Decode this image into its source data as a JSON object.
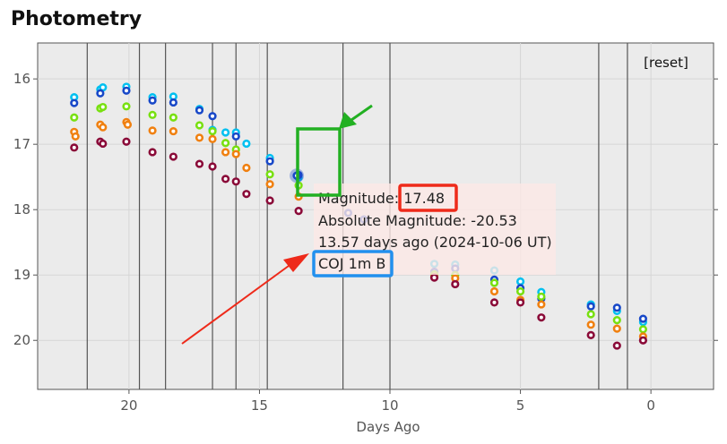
{
  "page": {
    "title": "Photometry"
  },
  "chart_data": {
    "type": "scatter",
    "title": "",
    "xlabel": "Days Ago",
    "ylabel": "",
    "xlim": [
      23.5,
      -2.4
    ],
    "ylim": [
      20.75,
      15.45
    ],
    "x_ticks": [
      20,
      15,
      10,
      5,
      0
    ],
    "y_ticks": [
      16,
      17,
      18,
      19,
      20
    ],
    "grid": true,
    "reset_label": "[reset]",
    "vlines": [
      21.6,
      19.6,
      18.6,
      16.8,
      15.9,
      14.7,
      11.8,
      10.0,
      2.0,
      0.9
    ],
    "series": [
      {
        "color": "#00c0f0",
        "points": [
          [
            22.1,
            16.28
          ],
          [
            21.1,
            16.16
          ],
          [
            21.0,
            16.13
          ],
          [
            20.1,
            16.12
          ],
          [
            19.1,
            16.28
          ],
          [
            18.3,
            16.27
          ],
          [
            17.3,
            16.46
          ],
          [
            16.8,
            16.78
          ],
          [
            16.3,
            16.82
          ],
          [
            15.9,
            16.82
          ],
          [
            15.5,
            16.99
          ],
          [
            14.6,
            17.21
          ],
          [
            13.5,
            17.51
          ],
          [
            8.3,
            18.83
          ],
          [
            7.5,
            18.84
          ],
          [
            6.0,
            18.93
          ],
          [
            5.0,
            19.1
          ],
          [
            4.2,
            19.26
          ],
          [
            2.3,
            19.45
          ],
          [
            1.3,
            19.55
          ],
          [
            0.3,
            19.72
          ]
        ]
      },
      {
        "color": "#1848c8",
        "points": [
          [
            22.1,
            16.37
          ],
          [
            21.1,
            16.22
          ],
          [
            20.1,
            16.18
          ],
          [
            19.1,
            16.33
          ],
          [
            18.3,
            16.36
          ],
          [
            17.3,
            16.48
          ],
          [
            16.8,
            16.57
          ],
          [
            15.9,
            16.88
          ],
          [
            14.6,
            17.26
          ],
          [
            13.5,
            17.47
          ],
          [
            11.6,
            18.05
          ],
          [
            11.0,
            18.15
          ],
          [
            8.3,
            18.95
          ],
          [
            7.5,
            18.9
          ],
          [
            6.0,
            19.07
          ],
          [
            5.0,
            19.2
          ],
          [
            4.2,
            19.36
          ],
          [
            2.3,
            19.48
          ],
          [
            1.3,
            19.5
          ],
          [
            0.3,
            19.67
          ]
        ]
      },
      {
        "color": "#78e010",
        "points": [
          [
            22.1,
            16.59
          ],
          [
            21.1,
            16.45
          ],
          [
            21.0,
            16.43
          ],
          [
            20.1,
            16.42
          ],
          [
            19.1,
            16.55
          ],
          [
            18.3,
            16.59
          ],
          [
            17.3,
            16.71
          ],
          [
            16.8,
            16.8
          ],
          [
            16.3,
            16.98
          ],
          [
            15.9,
            17.08
          ],
          [
            14.6,
            17.46
          ],
          [
            13.5,
            17.63
          ],
          [
            8.3,
            18.99
          ],
          [
            7.5,
            19.0
          ],
          [
            6.0,
            19.12
          ],
          [
            5.0,
            19.25
          ],
          [
            4.2,
            19.33
          ],
          [
            2.3,
            19.6
          ],
          [
            1.3,
            19.69
          ],
          [
            0.3,
            19.83
          ]
        ]
      },
      {
        "color": "#f08010",
        "points": [
          [
            22.1,
            16.81
          ],
          [
            22.05,
            16.88
          ],
          [
            21.1,
            16.7
          ],
          [
            21.0,
            16.74
          ],
          [
            20.1,
            16.66
          ],
          [
            20.05,
            16.7
          ],
          [
            19.1,
            16.79
          ],
          [
            18.3,
            16.8
          ],
          [
            17.3,
            16.9
          ],
          [
            16.8,
            16.92
          ],
          [
            16.3,
            17.12
          ],
          [
            15.9,
            17.15
          ],
          [
            15.5,
            17.36
          ],
          [
            14.6,
            17.61
          ],
          [
            13.5,
            17.8
          ],
          [
            8.3,
            19.03
          ],
          [
            7.5,
            19.05
          ],
          [
            6.0,
            19.25
          ],
          [
            5.0,
            19.38
          ],
          [
            4.2,
            19.45
          ],
          [
            2.3,
            19.76
          ],
          [
            1.3,
            19.82
          ],
          [
            0.3,
            19.94
          ]
        ]
      },
      {
        "color": "#8a0a38",
        "points": [
          [
            22.1,
            17.05
          ],
          [
            21.1,
            16.96
          ],
          [
            21.0,
            16.99
          ],
          [
            20.1,
            16.96
          ],
          [
            19.1,
            17.12
          ],
          [
            18.3,
            17.19
          ],
          [
            17.3,
            17.3
          ],
          [
            16.8,
            17.34
          ],
          [
            16.3,
            17.53
          ],
          [
            15.9,
            17.57
          ],
          [
            15.5,
            17.76
          ],
          [
            14.6,
            17.86
          ],
          [
            13.5,
            18.02
          ],
          [
            8.3,
            19.04
          ],
          [
            7.5,
            19.14
          ],
          [
            6.0,
            19.42
          ],
          [
            5.0,
            19.42
          ],
          [
            4.2,
            19.65
          ],
          [
            2.3,
            19.92
          ],
          [
            1.3,
            20.08
          ],
          [
            0.3,
            20.0
          ]
        ]
      }
    ],
    "highlight_point": {
      "x": 13.57,
      "y": 17.48,
      "color": "#1848c8"
    },
    "tooltip": {
      "magnitude": "Magnitude: 17.48",
      "absolute_magnitude": "Absolute Magnitude: -20.53",
      "days_ago": "13.57 days ago (2024-10-06 UT)",
      "instrument": "COJ 1m B"
    }
  }
}
